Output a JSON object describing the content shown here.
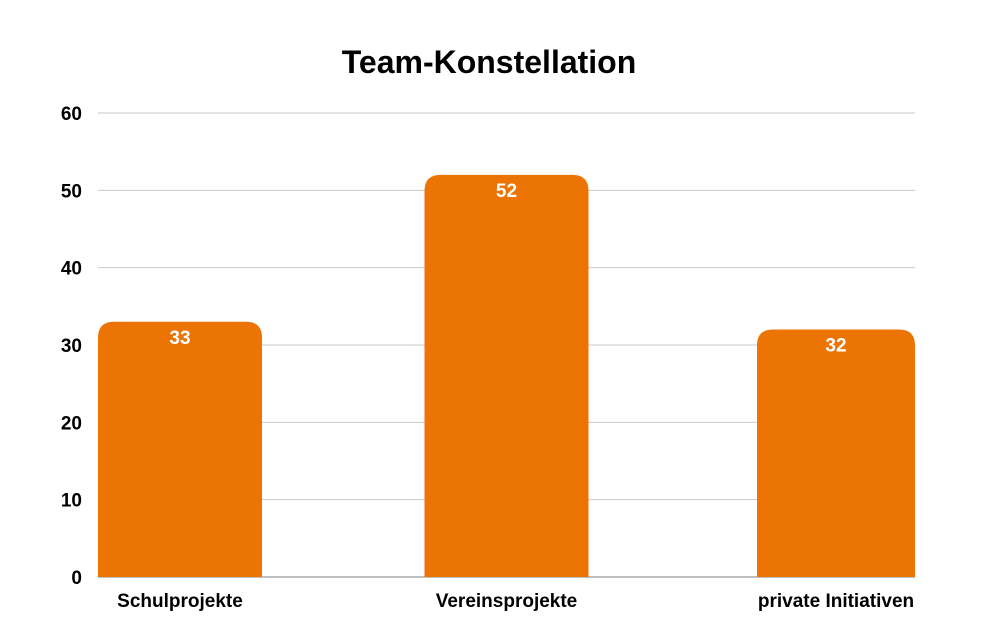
{
  "chart_data": {
    "type": "bar",
    "title": "Team-Konstellation",
    "categories": [
      "Schulprojekte",
      "Vereinsprojekte",
      "private Initiativen"
    ],
    "values": [
      33,
      52,
      32
    ],
    "data_labels": [
      "33",
      "52",
      "32"
    ],
    "ylim": [
      0,
      60
    ],
    "yticks": [
      0,
      10,
      20,
      30,
      40,
      50,
      60
    ],
    "grid": true,
    "bar_color": "#EC7404"
  }
}
